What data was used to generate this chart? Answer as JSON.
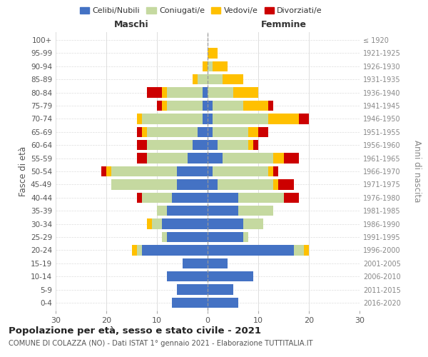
{
  "age_groups": [
    "0-4",
    "5-9",
    "10-14",
    "15-19",
    "20-24",
    "25-29",
    "30-34",
    "35-39",
    "40-44",
    "45-49",
    "50-54",
    "55-59",
    "60-64",
    "65-69",
    "70-74",
    "75-79",
    "80-84",
    "85-89",
    "90-94",
    "95-99",
    "100+"
  ],
  "birth_years": [
    "2016-2020",
    "2011-2015",
    "2006-2010",
    "2001-2005",
    "1996-2000",
    "1991-1995",
    "1986-1990",
    "1981-1985",
    "1976-1980",
    "1971-1975",
    "1966-1970",
    "1961-1965",
    "1956-1960",
    "1951-1955",
    "1946-1950",
    "1941-1945",
    "1936-1940",
    "1931-1935",
    "1926-1930",
    "1921-1925",
    "≤ 1920"
  ],
  "male": {
    "celibi": [
      7,
      6,
      8,
      5,
      13,
      8,
      9,
      8,
      7,
      6,
      6,
      4,
      3,
      2,
      1,
      1,
      1,
      0,
      0,
      0,
      0
    ],
    "coniugati": [
      0,
      0,
      0,
      0,
      1,
      1,
      2,
      2,
      6,
      13,
      13,
      8,
      9,
      10,
      12,
      7,
      7,
      2,
      0,
      0,
      0
    ],
    "vedovi": [
      0,
      0,
      0,
      0,
      1,
      0,
      1,
      0,
      0,
      0,
      1,
      0,
      0,
      1,
      1,
      1,
      1,
      1,
      1,
      0,
      0
    ],
    "divorziati": [
      0,
      0,
      0,
      0,
      0,
      0,
      0,
      0,
      1,
      0,
      1,
      2,
      2,
      1,
      0,
      1,
      3,
      0,
      0,
      0,
      0
    ]
  },
  "female": {
    "nubili": [
      6,
      5,
      9,
      4,
      17,
      7,
      7,
      6,
      6,
      2,
      1,
      3,
      2,
      1,
      1,
      1,
      0,
      0,
      0,
      0,
      0
    ],
    "coniugate": [
      0,
      0,
      0,
      0,
      2,
      1,
      4,
      7,
      9,
      11,
      11,
      10,
      6,
      7,
      11,
      6,
      5,
      3,
      1,
      0,
      0
    ],
    "vedove": [
      0,
      0,
      0,
      0,
      1,
      0,
      0,
      0,
      0,
      1,
      1,
      2,
      1,
      2,
      6,
      5,
      5,
      4,
      3,
      2,
      0
    ],
    "divorziate": [
      0,
      0,
      0,
      0,
      0,
      0,
      0,
      0,
      3,
      3,
      1,
      3,
      1,
      2,
      2,
      1,
      0,
      0,
      0,
      0,
      0
    ]
  },
  "colors": {
    "celibi": "#4472c4",
    "coniugati": "#c5d9a0",
    "vedovi": "#ffc000",
    "divorziati": "#cc0000"
  },
  "xlim": 30,
  "title": "Popolazione per età, sesso e stato civile - 2021",
  "subtitle": "COMUNE DI COLAZZA (NO) - Dati ISTAT 1° gennaio 2021 - Elaborazione TUTTITALIA.IT",
  "ylabel_left": "Fasce di età",
  "ylabel_right": "Anni di nascita",
  "xlabel_left": "Maschi",
  "xlabel_right": "Femmine",
  "background_color": "#ffffff",
  "grid_color": "#dddddd"
}
